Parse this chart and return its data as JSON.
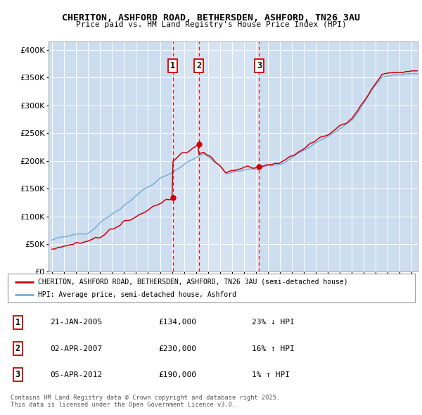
{
  "title": "CHERITON, ASHFORD ROAD, BETHERSDEN, ASHFORD, TN26 3AU",
  "subtitle": "Price paid vs. HM Land Registry's House Price Index (HPI)",
  "bg_color": "#ccddf0",
  "highlight_color": "#c8dcf0",
  "yticks": [
    0,
    50000,
    100000,
    150000,
    200000,
    250000,
    300000,
    350000,
    400000
  ],
  "ytick_labels": [
    "£0",
    "£50K",
    "£100K",
    "£150K",
    "£200K",
    "£250K",
    "£300K",
    "£350K",
    "£400K"
  ],
  "xlim_start": 1994.7,
  "xlim_end": 2025.5,
  "ylim": [
    0,
    415000
  ],
  "sale_dates": [
    2005.056,
    2007.25,
    2012.26
  ],
  "sale_prices": [
    134000,
    230000,
    190000
  ],
  "sale_labels": [
    "1",
    "2",
    "3"
  ],
  "sale_color": "#cc0000",
  "hpi_color": "#7aadd4",
  "legend_entries": [
    "CHERITON, ASHFORD ROAD, BETHERSDEN, ASHFORD, TN26 3AU (semi-detached house)",
    "HPI: Average price, semi-detached house, Ashford"
  ],
  "table_rows": [
    [
      "1",
      "21-JAN-2005",
      "£134,000",
      "23% ↓ HPI"
    ],
    [
      "2",
      "02-APR-2007",
      "£230,000",
      "16% ↑ HPI"
    ],
    [
      "3",
      "05-APR-2012",
      "£190,000",
      "1% ↑ HPI"
    ]
  ],
  "footnote": "Contains HM Land Registry data © Crown copyright and database right 2025.\nThis data is licensed under the Open Government Licence v3.0."
}
